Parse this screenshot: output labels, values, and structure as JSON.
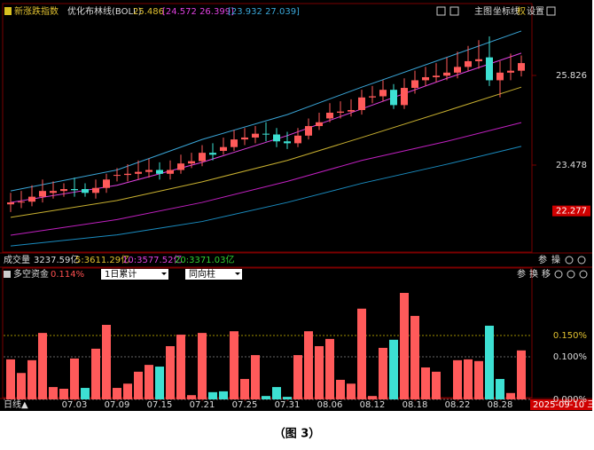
{
  "top_header": {
    "title": "新涨跌指数",
    "indicator": "优化布林线(BOLL)",
    "mid": "25.486",
    "band1": "[24.572 26.399]",
    "band2": "[23.932 27.039]",
    "buttons": [
      "主图",
      "坐标线",
      "权",
      "设置"
    ]
  },
  "volume_bar": {
    "label": "成交量",
    "total": "3237.59亿",
    "ma5": "5:3611.29亿",
    "ma10": "10:3577.52亿",
    "ma20": "20:3371.03亿",
    "buttons": [
      "参",
      "操"
    ]
  },
  "lower_header": {
    "title": "多空资金",
    "value": "0.114%",
    "select1": "1日累计",
    "select2": "同向柱",
    "buttons": [
      "参",
      "换",
      "移"
    ]
  },
  "footer": {
    "period": "日线▲",
    "date": "2025-09-10 三"
  },
  "caption": "（图 3）",
  "chart_data": [
    {
      "type": "candlestick",
      "ylim": [
        21.246,
        27.384
      ],
      "yticks": [
        25.826,
        23.478
      ],
      "price_marker": 22.277,
      "up_color": "#ff5a5a",
      "down_color": "#3de0d2",
      "open": [
        22.45,
        22.5,
        22.52,
        22.65,
        22.75,
        22.8,
        22.85,
        22.85,
        22.75,
        22.88,
        23.2,
        23.22,
        23.25,
        23.3,
        23.35,
        23.25,
        23.35,
        23.52,
        23.58,
        23.8,
        23.85,
        23.95,
        24.15,
        24.2,
        24.3,
        24.28,
        24.1,
        24.05,
        24.25,
        24.5,
        24.7,
        24.85,
        24.88,
        24.92,
        25.25,
        25.28,
        25.45,
        25.05,
        25.5,
        25.7,
        25.78,
        25.82,
        25.9,
        26.05,
        26.2,
        26.3,
        25.7,
        25.9,
        25.95
      ],
      "high": [
        22.75,
        22.8,
        22.95,
        23.1,
        23.05,
        23.0,
        23.15,
        23.0,
        23.1,
        23.25,
        23.4,
        23.5,
        23.6,
        23.65,
        23.55,
        23.6,
        23.75,
        23.8,
        24.0,
        24.05,
        24.2,
        24.4,
        24.45,
        24.5,
        24.6,
        24.45,
        24.35,
        24.45,
        24.7,
        24.85,
        25.1,
        25.15,
        25.2,
        25.45,
        25.55,
        25.7,
        25.6,
        25.75,
        25.95,
        26.05,
        26.15,
        26.3,
        26.45,
        26.6,
        26.75,
        26.85,
        26.2,
        26.4,
        26.35
      ],
      "low": [
        22.25,
        22.35,
        22.4,
        22.5,
        22.6,
        22.65,
        22.65,
        22.65,
        22.6,
        22.75,
        23.05,
        23.05,
        23.1,
        23.15,
        23.1,
        23.1,
        23.25,
        23.4,
        23.45,
        23.6,
        23.75,
        23.85,
        24.0,
        24.05,
        24.1,
        23.95,
        23.9,
        23.95,
        24.15,
        24.4,
        24.6,
        24.7,
        24.75,
        24.8,
        25.1,
        25.15,
        24.95,
        24.95,
        25.35,
        25.55,
        25.65,
        25.7,
        25.75,
        25.95,
        26.0,
        25.55,
        25.25,
        25.7,
        25.8
      ],
      "close": [
        22.5,
        22.52,
        22.65,
        22.8,
        22.8,
        22.85,
        22.82,
        22.75,
        22.88,
        23.1,
        23.22,
        23.25,
        23.3,
        23.35,
        23.25,
        23.35,
        23.52,
        23.58,
        23.8,
        23.75,
        23.95,
        24.15,
        24.2,
        24.3,
        24.28,
        24.1,
        24.05,
        24.25,
        24.5,
        24.6,
        24.85,
        24.88,
        24.92,
        25.25,
        25.28,
        25.45,
        25.05,
        25.5,
        25.7,
        25.78,
        25.82,
        25.9,
        26.05,
        26.2,
        26.25,
        25.7,
        25.9,
        25.95,
        26.15
      ],
      "lines": [
        {
          "color": "#3aa6d8",
          "x": [
            0,
            10,
            18,
            26,
            33,
            41,
            48
          ],
          "values": [
            22.8,
            23.35,
            24.15,
            24.8,
            25.52,
            26.3,
            26.99
          ]
        },
        {
          "color": "#e040e0",
          "x": [
            0,
            10,
            18,
            26,
            33,
            41,
            48
          ],
          "values": [
            22.5,
            22.95,
            23.55,
            24.25,
            24.95,
            25.75,
            26.41
          ]
        },
        {
          "color": "#c8b030",
          "x": [
            0,
            10,
            18,
            26,
            33,
            41,
            48
          ],
          "values": [
            22.11,
            22.55,
            23.04,
            23.6,
            24.2,
            24.9,
            25.52
          ]
        },
        {
          "color": "#c020c0",
          "x": [
            0,
            10,
            18,
            26,
            33,
            41,
            48
          ],
          "values": [
            21.64,
            22.05,
            22.5,
            23.05,
            23.6,
            24.1,
            24.59
          ]
        },
        {
          "color": "#1a8cc0",
          "x": [
            0,
            10,
            18,
            26,
            33,
            41,
            48
          ],
          "values": [
            21.36,
            21.65,
            22.0,
            22.5,
            23.0,
            23.5,
            23.97
          ]
        }
      ],
      "xticks": [
        {
          "value": 6,
          "label": "07.03"
        },
        {
          "value": 10,
          "label": "07.09"
        },
        {
          "value": 14,
          "label": "07.15"
        },
        {
          "value": 18,
          "label": "07.21"
        },
        {
          "value": 22,
          "label": "07.25"
        },
        {
          "value": 26,
          "label": "07.31"
        },
        {
          "value": 30,
          "label": "08.06"
        },
        {
          "value": 34,
          "label": "08.12"
        },
        {
          "value": 38,
          "label": "08.18"
        },
        {
          "value": 42,
          "label": "08.22"
        },
        {
          "value": 46,
          "label": "08.28"
        }
      ]
    },
    {
      "type": "bar",
      "ylim": [
        0,
        0.275
      ],
      "yticks": [
        {
          "value": 0.15,
          "label": "0.150%"
        },
        {
          "value": 0.1,
          "label": "0.100%"
        },
        {
          "value": 0,
          "label": "0.000%"
        }
      ],
      "values": [
        0.094,
        0.062,
        0.092,
        0.156,
        0.029,
        0.025,
        0.096,
        0.027,
        0.119,
        0.175,
        0.027,
        0.037,
        0.065,
        0.081,
        0.077,
        0.125,
        0.152,
        0.01,
        0.156,
        0.017,
        0.019,
        0.16,
        0.048,
        0.104,
        0.008,
        0.029,
        0.006,
        0.104,
        0.16,
        0.125,
        0.142,
        0.046,
        0.037,
        0.213,
        0.008,
        0.121,
        0.14,
        0.25,
        0.196,
        0.075,
        0.065,
        0,
        0.092,
        0.094,
        0.09,
        0.173,
        0.048,
        0.015,
        0.115
      ],
      "colors": [
        "#ff5a5a",
        "#ff5a5a",
        "#ff5a5a",
        "#ff5a5a",
        "#ff5a5a",
        "#ff5a5a",
        "#ff5a5a",
        "#3de0d2",
        "#ff5a5a",
        "#ff5a5a",
        "#ff5a5a",
        "#ff5a5a",
        "#ff5a5a",
        "#ff5a5a",
        "#3de0d2",
        "#ff5a5a",
        "#ff5a5a",
        "#ff5a5a",
        "#ff5a5a",
        "#3de0d2",
        "#3de0d2",
        "#ff5a5a",
        "#ff5a5a",
        "#ff5a5a",
        "#3de0d2",
        "#3de0d2",
        "#3de0d2",
        "#ff5a5a",
        "#ff5a5a",
        "#ff5a5a",
        "#ff5a5a",
        "#ff5a5a",
        "#ff5a5a",
        "#ff5a5a",
        "#ff5a5a",
        "#ff5a5a",
        "#3de0d2",
        "#ff5a5a",
        "#ff5a5a",
        "#ff5a5a",
        "#ff5a5a",
        "#ff5a5a",
        "#ff5a5a",
        "#ff5a5a",
        "#ff5a5a",
        "#3de0d2",
        "#3de0d2",
        "#ff5a5a",
        "#ff5a5a"
      ]
    }
  ]
}
